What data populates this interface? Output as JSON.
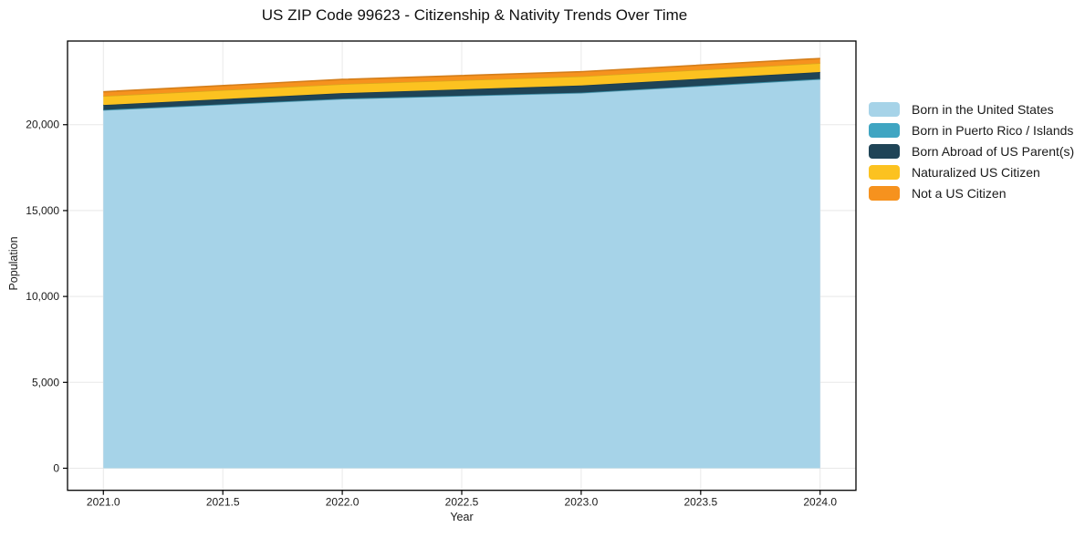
{
  "title": "US ZIP Code 99623 - Citizenship & Nativity Trends Over Time",
  "chart_data": {
    "type": "area",
    "stacked": true,
    "title": "US ZIP Code 99623 - Citizenship & Nativity Trends Over Time",
    "xlabel": "Year",
    "ylabel": "Population",
    "x": [
      2021,
      2022,
      2023,
      2024
    ],
    "series": [
      {
        "name": "Born in the United States",
        "color": "#A6D3E8",
        "values": [
          20850,
          21500,
          21850,
          22650
        ]
      },
      {
        "name": "Born in Puerto Rico / Islands",
        "color": "#3FA5C2",
        "values": [
          15,
          15,
          15,
          15
        ]
      },
      {
        "name": "Born Abroad of US Parent(s)",
        "color": "#1F4457",
        "values": [
          280,
          320,
          420,
          400
        ]
      },
      {
        "name": "Naturalized US Citizen",
        "color": "#FCC220",
        "values": [
          520,
          530,
          530,
          520
        ]
      },
      {
        "name": "Not a US Citizen",
        "color": "#F6921E",
        "values": [
          250,
          270,
          270,
          270
        ]
      }
    ],
    "xticks": {
      "values": [
        2021.0,
        2021.5,
        2022.0,
        2022.5,
        2023.0,
        2023.5,
        2024.0
      ],
      "labels": [
        "2021.0",
        "2021.5",
        "2022.0",
        "2022.5",
        "2023.0",
        "2023.5",
        "2024.0"
      ]
    },
    "yticks": {
      "values": [
        0,
        5000,
        10000,
        15000,
        20000
      ],
      "labels": [
        "0",
        "5,000",
        "10,000",
        "15,000",
        "20,000"
      ]
    },
    "xlim": [
      2020.85,
      2024.15
    ],
    "ylim": [
      -1285,
      24870
    ],
    "grid": true,
    "legend_position": "right",
    "colors": {
      "background": "#FFFFFF",
      "axis": "#000000",
      "grid": "#E8E8E8",
      "text": "#1A1A1A"
    }
  }
}
